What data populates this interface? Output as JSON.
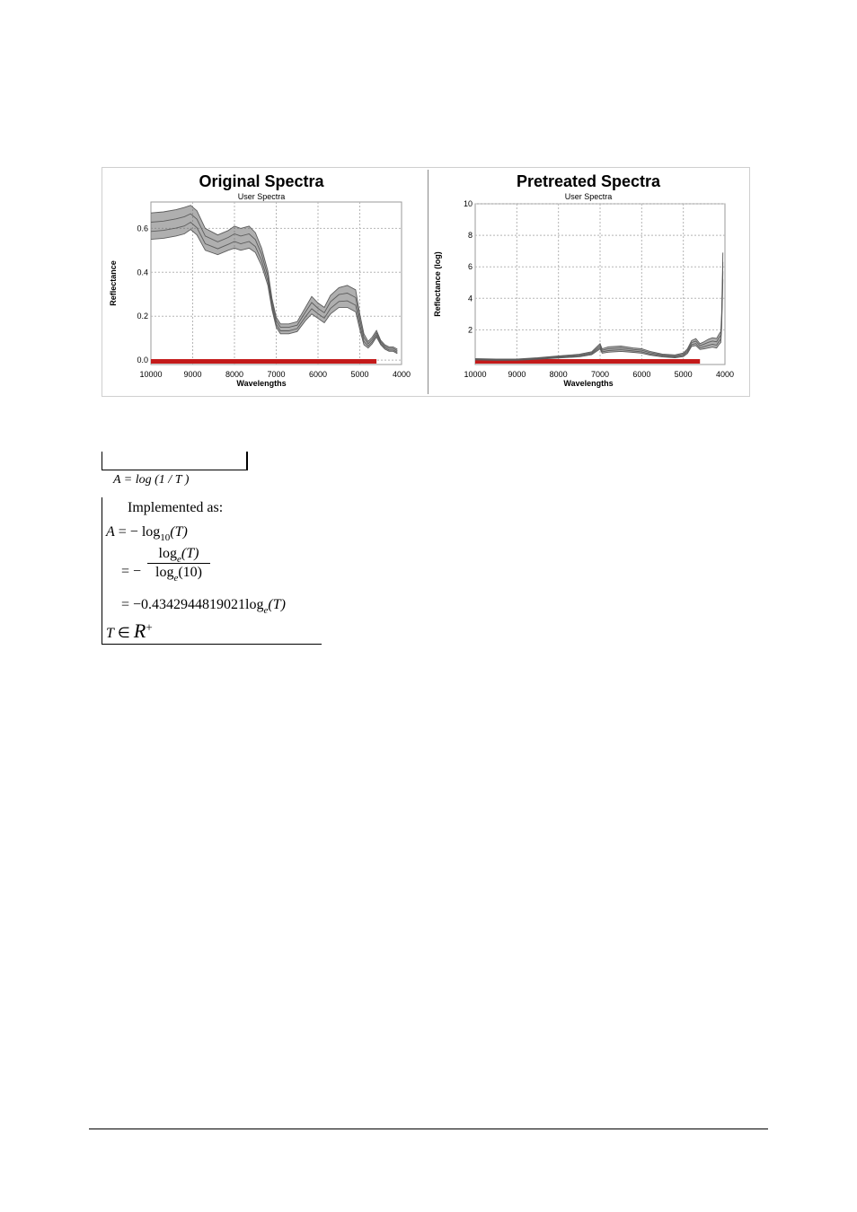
{
  "chart_data": [
    {
      "type": "line",
      "title": "Original Spectra",
      "subtitle": "User Spectra",
      "xlabel": "Wavelengths",
      "ylabel": "Reflectance",
      "xlim": [
        10000,
        4000
      ],
      "ylim": [
        -0.02,
        0.72
      ],
      "x_ticks": [
        "10000",
        "9000",
        "8000",
        "7000",
        "6000",
        "5000",
        "4000"
      ],
      "y_ticks": [
        "0.0",
        "0.2",
        "0.4",
        "0.6"
      ],
      "grid": true,
      "band_color": "#c41a1a",
      "line_color": "#6e6e6e",
      "band_range": [
        10000,
        4600
      ],
      "profile": {
        "x": [
          10000,
          9700,
          9400,
          9200,
          9050,
          8900,
          8700,
          8400,
          8150,
          8000,
          7850,
          7650,
          7500,
          7350,
          7200,
          7100,
          7000,
          6900,
          6700,
          6500,
          6300,
          6150,
          6000,
          5850,
          5700,
          5500,
          5300,
          5100,
          5000,
          4900,
          4800,
          4700,
          4600,
          4500,
          4400,
          4300,
          4200,
          4100
        ],
        "y": [
          0.64,
          0.645,
          0.655,
          0.665,
          0.675,
          0.65,
          0.57,
          0.54,
          0.56,
          0.58,
          0.57,
          0.58,
          0.55,
          0.48,
          0.38,
          0.26,
          0.18,
          0.15,
          0.15,
          0.16,
          0.22,
          0.26,
          0.23,
          0.21,
          0.26,
          0.29,
          0.3,
          0.28,
          0.18,
          0.1,
          0.07,
          0.09,
          0.12,
          0.08,
          0.06,
          0.05,
          0.05,
          0.04
        ]
      },
      "upper_offset": [
        0.03,
        0.03,
        0.03,
        0.03,
        0.03,
        0.03,
        0.03,
        0.03,
        0.03,
        0.03,
        0.03,
        0.03,
        0.03,
        0.03,
        0.025,
        0.02,
        0.015,
        0.015,
        0.015,
        0.015,
        0.02,
        0.03,
        0.03,
        0.03,
        0.035,
        0.04,
        0.04,
        0.04,
        0.03,
        0.02,
        0.015,
        0.015,
        0.015,
        0.01,
        0.01,
        0.01,
        0.01,
        0.01
      ],
      "lower_offset": [
        0.09,
        0.09,
        0.09,
        0.09,
        0.08,
        0.08,
        0.07,
        0.06,
        0.06,
        0.07,
        0.07,
        0.07,
        0.06,
        0.05,
        0.04,
        0.03,
        0.03,
        0.03,
        0.03,
        0.03,
        0.04,
        0.05,
        0.04,
        0.04,
        0.05,
        0.05,
        0.06,
        0.06,
        0.04,
        0.03,
        0.015,
        0.015,
        0.015,
        0.01,
        0.01,
        0.01,
        0.01,
        0.01
      ]
    },
    {
      "type": "line",
      "title": "Pretreated Spectra",
      "subtitle": "User Spectra",
      "xlabel": "Wavelengths",
      "ylabel": "Reflectance (log)",
      "xlim": [
        10000,
        4000
      ],
      "ylim": [
        -0.2,
        10
      ],
      "x_ticks": [
        "10000",
        "9000",
        "8000",
        "7000",
        "6000",
        "5000",
        "4000"
      ],
      "y_ticks": [
        "2",
        "4",
        "6",
        "8",
        "10"
      ],
      "grid": true,
      "band_color": "#c41a1a",
      "line_color": "#6e6e6e",
      "band_range": [
        10000,
        4600
      ],
      "profile": {
        "x": [
          10000,
          9500,
          9000,
          8500,
          8000,
          7500,
          7200,
          7050,
          7000,
          6950,
          6800,
          6500,
          6200,
          6000,
          5800,
          5500,
          5200,
          5000,
          4900,
          4800,
          4700,
          4600,
          4500,
          4400,
          4300,
          4200,
          4150,
          4100,
          4080,
          4060,
          4050
        ],
        "y": [
          0.15,
          0.12,
          0.13,
          0.2,
          0.3,
          0.4,
          0.55,
          0.9,
          1.0,
          0.7,
          0.8,
          0.85,
          0.75,
          0.7,
          0.55,
          0.4,
          0.35,
          0.45,
          0.7,
          1.2,
          1.3,
          1.0,
          1.1,
          1.2,
          1.3,
          1.25,
          1.5,
          1.7,
          2.8,
          5.2,
          6.7
        ]
      },
      "upper_offset": [
        0.02,
        0.02,
        0.02,
        0.03,
        0.04,
        0.05,
        0.06,
        0.1,
        0.12,
        0.1,
        0.12,
        0.12,
        0.1,
        0.1,
        0.08,
        0.06,
        0.06,
        0.08,
        0.1,
        0.12,
        0.14,
        0.12,
        0.15,
        0.2,
        0.2,
        0.2,
        0.2,
        0.2,
        0.2,
        0.2,
        0.2
      ],
      "lower_offset": [
        0.06,
        0.06,
        0.06,
        0.07,
        0.09,
        0.11,
        0.13,
        0.2,
        0.22,
        0.18,
        0.22,
        0.22,
        0.18,
        0.18,
        0.15,
        0.12,
        0.12,
        0.15,
        0.2,
        0.25,
        0.3,
        0.25,
        0.3,
        0.35,
        0.4,
        0.4,
        0.45,
        0.5,
        0.7,
        1.2,
        1.5
      ]
    }
  ],
  "formulas": {
    "inline": "A = log (1 / T )",
    "implemented_label": "Implemented as:",
    "line1_left": "A",
    "line1_eq": " = − log",
    "line1_sub": "10",
    "line1_arg": "(T)",
    "frac_num": "log",
    "frac_num_sub": "e",
    "frac_num_arg": "(T)",
    "frac_den": "log",
    "frac_den_sub": "e",
    "frac_den_arg": "(10)",
    "line2_eq": "= −",
    "line3": "= −0.4342944819021log",
    "line3_sub": "e",
    "line3_arg": "(T)",
    "domain_T": "T",
    "domain_in": " ∈ ",
    "domain_R": "R",
    "domain_plus": "+"
  }
}
